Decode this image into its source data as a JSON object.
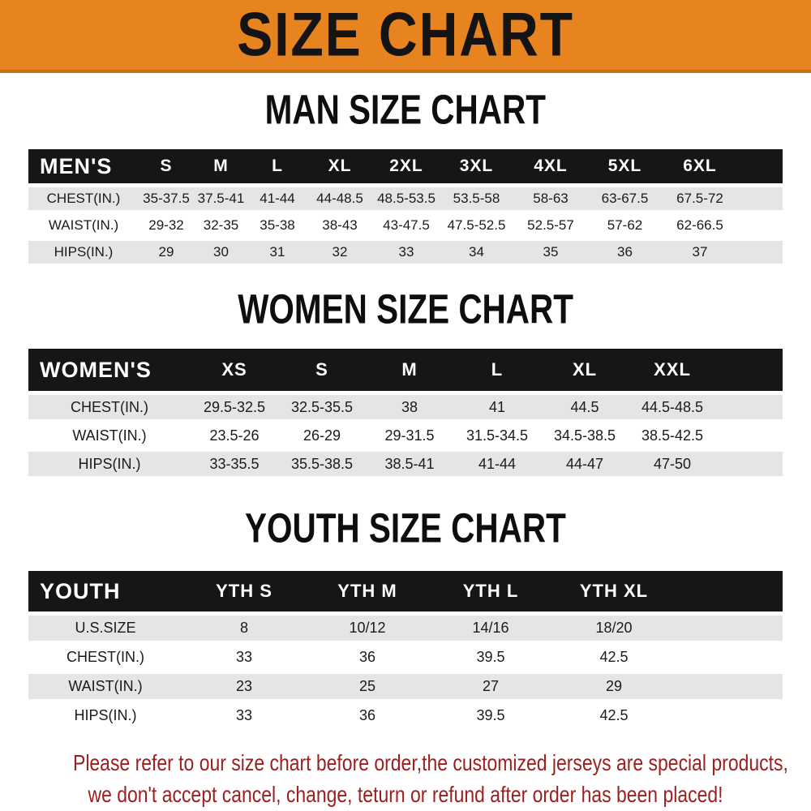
{
  "banner": {
    "title": "SIZE CHART"
  },
  "colors": {
    "banner_orange": "#e8841f",
    "banner_edge": "#c96f15",
    "header_black": "#161616",
    "row_gray": "#e5e5e5",
    "notice_red": "#9c1e1e"
  },
  "sections": [
    {
      "id": "men",
      "heading": "MAN SIZE CHART",
      "header": {
        "label": "MEN'S",
        "columns": [
          "S",
          "M",
          "L",
          "XL",
          "2XL",
          "3XL",
          "4XL",
          "5XL",
          "6XL"
        ]
      },
      "rows": [
        {
          "label": "CHEST(IN.)",
          "values": [
            "35-37.5",
            "37.5-41",
            "41-44",
            "44-48.5",
            "48.5-53.5",
            "53.5-58",
            "58-63",
            "63-67.5",
            "67.5-72"
          ]
        },
        {
          "label": "WAIST(IN.)",
          "values": [
            "29-32",
            "32-35",
            "35-38",
            "38-43",
            "43-47.5",
            "47.5-52.5",
            "52.5-57",
            "57-62",
            "62-66.5"
          ]
        },
        {
          "label": "HIPS(IN.)",
          "values": [
            "29",
            "30",
            "31",
            "32",
            "33",
            "34",
            "35",
            "36",
            "37"
          ]
        }
      ],
      "row_shading": [
        "gray",
        "white",
        "gray"
      ]
    },
    {
      "id": "women",
      "heading": "WOMEN SIZE CHART",
      "header": {
        "label": "WOMEN'S",
        "columns": [
          "XS",
          "S",
          "M",
          "L",
          "XL",
          "XXL"
        ]
      },
      "rows": [
        {
          "label": "CHEST(IN.)",
          "values": [
            "29.5-32.5",
            "32.5-35.5",
            "38",
            "41",
            "44.5",
            "44.5-48.5"
          ]
        },
        {
          "label": "WAIST(IN.)",
          "values": [
            "23.5-26",
            "26-29",
            "29-31.5",
            "31.5-34.5",
            "34.5-38.5",
            "38.5-42.5"
          ]
        },
        {
          "label": "HIPS(IN.)",
          "values": [
            "33-35.5",
            "35.5-38.5",
            "38.5-41",
            "41-44",
            "44-47",
            "47-50"
          ]
        }
      ],
      "row_shading": [
        "gray",
        "white",
        "gray"
      ]
    },
    {
      "id": "youth",
      "heading": "YOUTH SIZE CHART",
      "header": {
        "label": "YOUTH",
        "columns": [
          "YTH S",
          "YTH M",
          "YTH L",
          "YTH XL"
        ]
      },
      "rows": [
        {
          "label": "U.S.SIZE",
          "values": [
            "8",
            "10/12",
            "14/16",
            "18/20"
          ]
        },
        {
          "label": "CHEST(IN.)",
          "values": [
            "33",
            "36",
            "39.5",
            "42.5"
          ]
        },
        {
          "label": "WAIST(IN.)",
          "values": [
            "23",
            "25",
            "27",
            "29"
          ]
        },
        {
          "label": "HIPS(IN.)",
          "values": [
            "33",
            "36",
            "39.5",
            "42.5"
          ]
        }
      ],
      "row_shading": [
        "gray",
        "white",
        "gray",
        "white"
      ]
    }
  ],
  "notice": {
    "line1": "Please refer to our size chart before order,the customized jerseys are special products,",
    "line2": "we don't accept cancel, change, teturn or refund after order has been placed!"
  }
}
